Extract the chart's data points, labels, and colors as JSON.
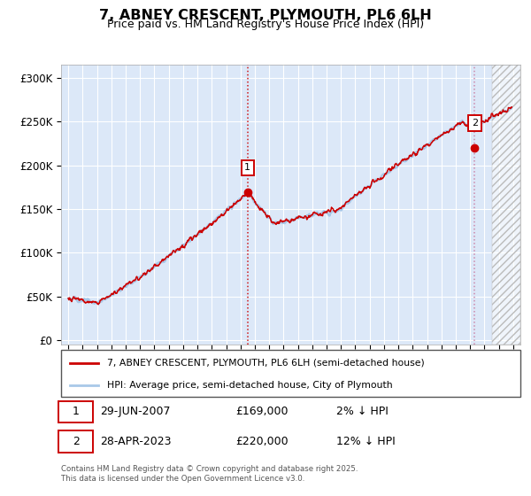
{
  "title": "7, ABNEY CRESCENT, PLYMOUTH, PL6 6LH",
  "subtitle": "Price paid vs. HM Land Registry's House Price Index (HPI)",
  "ylabel_ticks": [
    "£0",
    "£50K",
    "£100K",
    "£150K",
    "£200K",
    "£250K",
    "£300K"
  ],
  "ytick_values": [
    0,
    50000,
    100000,
    150000,
    200000,
    250000,
    300000
  ],
  "ylim": [
    -5000,
    315000
  ],
  "xlim": [
    1994.5,
    2026.5
  ],
  "xticks": [
    1995,
    1996,
    1997,
    1998,
    1999,
    2000,
    2001,
    2002,
    2003,
    2004,
    2005,
    2006,
    2007,
    2008,
    2009,
    2010,
    2011,
    2012,
    2013,
    2014,
    2015,
    2016,
    2017,
    2018,
    2019,
    2020,
    2021,
    2022,
    2023,
    2024,
    2025,
    2026
  ],
  "hpi_color": "#a8c8e8",
  "price_color": "#cc0000",
  "vline2_color": "#cc88aa",
  "bg_color": "#dce8f8",
  "grid_color": "#ffffff",
  "marker1_x": 2007.49,
  "marker1_y": 169000,
  "marker2_x": 2023.32,
  "marker2_y": 220000,
  "vline1_x": 2007.49,
  "vline2_x": 2023.32,
  "hatched_region_start": 2024.5,
  "hatched_region_end": 2026.5,
  "legend_property_label": "7, ABNEY CRESCENT, PLYMOUTH, PL6 6LH (semi-detached house)",
  "legend_hpi_label": "HPI: Average price, semi-detached house, City of Plymouth",
  "annotation1_label": "1",
  "annotation1_date": "29-JUN-2007",
  "annotation1_price": "£169,000",
  "annotation1_hpi": "2% ↓ HPI",
  "annotation2_label": "2",
  "annotation2_date": "28-APR-2023",
  "annotation2_price": "£220,000",
  "annotation2_hpi": "12% ↓ HPI",
  "footer": "Contains HM Land Registry data © Crown copyright and database right 2025.\nThis data is licensed under the Open Government Licence v3.0."
}
